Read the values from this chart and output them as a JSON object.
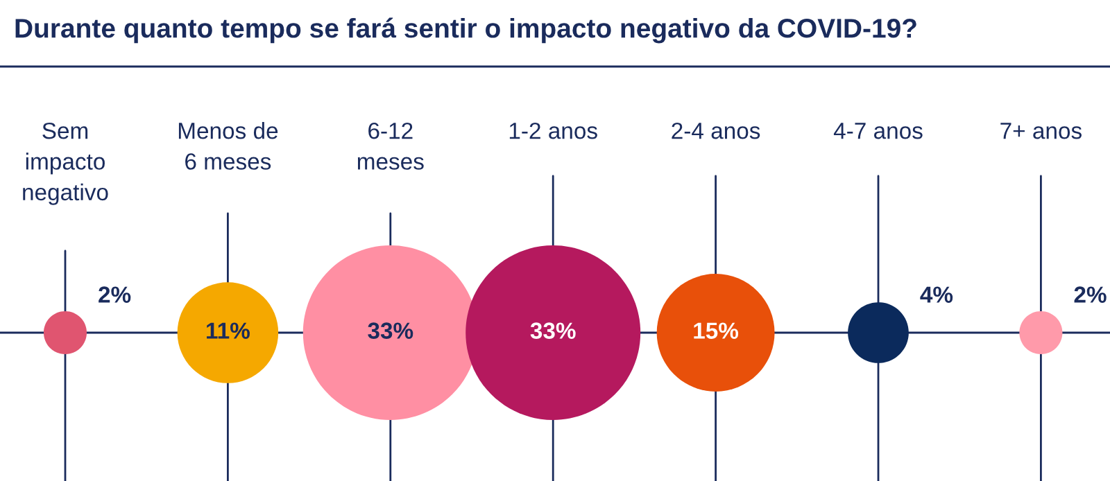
{
  "chart_data": {
    "type": "other",
    "title": "Durante quanto tempo se fará sentir o impacto negativo da COVID-19?",
    "categories": [
      "Sem\nimpacto\nnegativo",
      "Menos de\n6 meses",
      "6-12\nmeses",
      "1-2 anos",
      "2-4 anos",
      "4-7 anos",
      "7+ anos"
    ],
    "values": [
      2,
      11,
      33,
      33,
      15,
      4,
      2
    ],
    "value_labels": [
      "2%",
      "11%",
      "33%",
      "33%",
      "15%",
      "4%",
      "2%"
    ],
    "colors": [
      "#e05570",
      "#f5a800",
      "#ff8fa3",
      "#b5195e",
      "#e8500a",
      "#0b2a5c",
      "#ff9aaa"
    ]
  }
}
